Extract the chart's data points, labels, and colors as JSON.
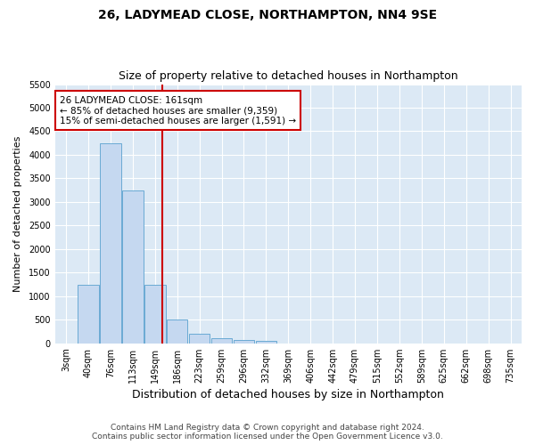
{
  "title1": "26, LADYMEAD CLOSE, NORTHAMPTON, NN4 9SE",
  "title2": "Size of property relative to detached houses in Northampton",
  "xlabel": "Distribution of detached houses by size in Northampton",
  "ylabel": "Number of detached properties",
  "footer1": "Contains HM Land Registry data © Crown copyright and database right 2024.",
  "footer2": "Contains public sector information licensed under the Open Government Licence v3.0.",
  "bar_labels": [
    "3sqm",
    "40sqm",
    "76sqm",
    "113sqm",
    "149sqm",
    "186sqm",
    "223sqm",
    "259sqm",
    "296sqm",
    "332sqm",
    "369sqm",
    "406sqm",
    "442sqm",
    "479sqm",
    "515sqm",
    "552sqm",
    "589sqm",
    "625sqm",
    "662sqm",
    "698sqm",
    "735sqm"
  ],
  "bar_values": [
    0,
    1250,
    4250,
    3250,
    1250,
    500,
    200,
    100,
    75,
    50,
    0,
    0,
    0,
    0,
    0,
    0,
    0,
    0,
    0,
    0,
    0
  ],
  "bar_color": "#c5d8f0",
  "bar_edge_color": "#6aaad4",
  "vline_x": 4.35,
  "vline_color": "#cc0000",
  "annotation_text": "26 LADYMEAD CLOSE: 161sqm\n← 85% of detached houses are smaller (9,359)\n15% of semi-detached houses are larger (1,591) →",
  "annotation_box_color": "#ffffff",
  "annotation_box_edge_color": "#cc0000",
  "ylim": [
    0,
    5500
  ],
  "yticks": [
    0,
    500,
    1000,
    1500,
    2000,
    2500,
    3000,
    3500,
    4000,
    4500,
    5000,
    5500
  ],
  "fig_bg_color": "#ffffff",
  "plot_bg_color": "#dce9f5",
  "title1_fontsize": 10,
  "title2_fontsize": 9,
  "xlabel_fontsize": 9,
  "ylabel_fontsize": 8,
  "tick_fontsize": 7,
  "annotation_fontsize": 7.5,
  "footer_fontsize": 6.5
}
